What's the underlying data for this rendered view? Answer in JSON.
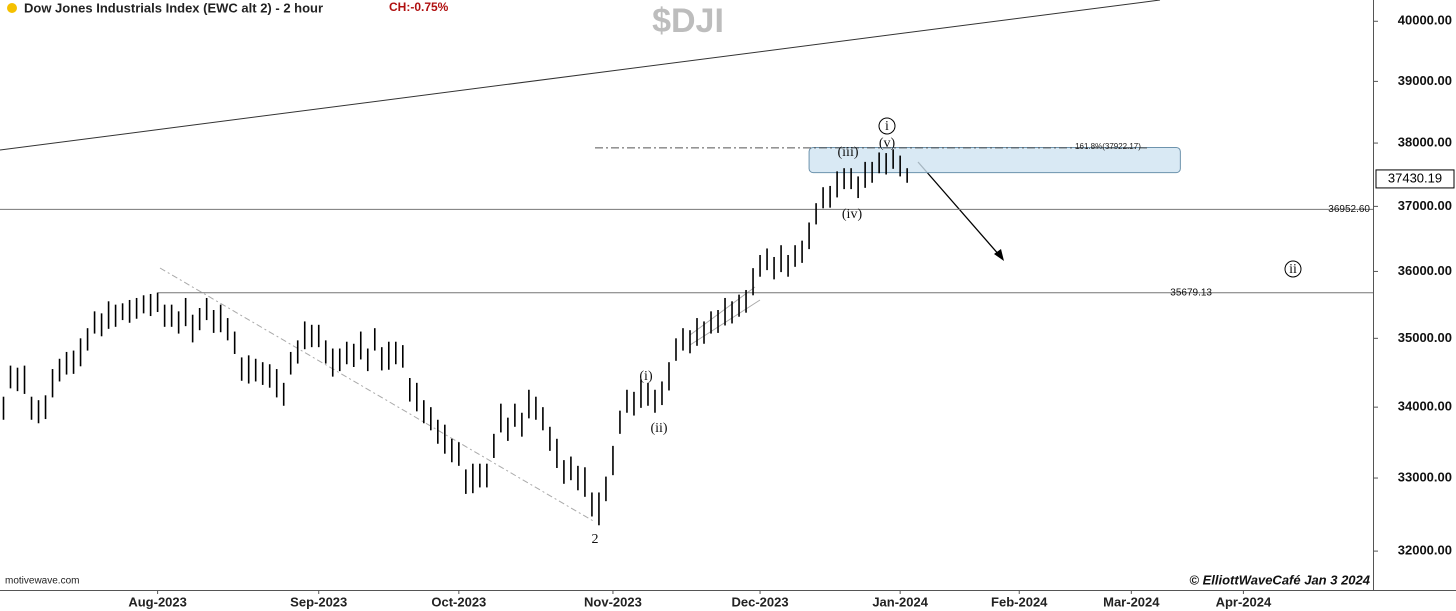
{
  "chart_data": {
    "type": "range",
    "title": "Dow Jones Industrials Index (EWC alt 2) - 2 hour",
    "change": "CH:-0.75%",
    "symbol": "$DJI",
    "source": "motivewave.com",
    "credit": "© ElliottWaveCafé Jan 3 2024",
    "color": "#000000",
    "log": true,
    "ylim": [
      31480,
      40360
    ],
    "yticks": [
      {
        "value": 32000,
        "label": "32000.00"
      },
      {
        "value": 33000,
        "label": "33000.00"
      },
      {
        "value": 34000,
        "label": "34000.00"
      },
      {
        "value": 35000,
        "label": "35000.00"
      },
      {
        "value": 36000,
        "label": "36000.00"
      },
      {
        "value": 37000,
        "label": "37000.00"
      },
      {
        "value": 38000,
        "label": "38000.00"
      },
      {
        "value": 39000,
        "label": "39000.00"
      },
      {
        "value": 40000,
        "label": "40000.00"
      }
    ],
    "last_price": 37430.19,
    "levels": [
      {
        "value": 36952.6,
        "label": "36952.60"
      },
      35679.13
    ],
    "fib": {
      "value": 37922.17,
      "label": "161.8%(37922.17)"
    },
    "target_zone": [
      37530,
      37930
    ],
    "annotations": [
      "2",
      "(i)",
      "(ii)",
      "(iii)",
      "(iv)",
      "(v)",
      "i",
      "ii"
    ],
    "categories": [
      null,
      null,
      null,
      null,
      null,
      null,
      null,
      null,
      null,
      null,
      null,
      null,
      null,
      null,
      null,
      null,
      null,
      null,
      null,
      null,
      null,
      null,
      "Aug-2023",
      null,
      null,
      null,
      null,
      null,
      null,
      null,
      null,
      null,
      null,
      null,
      null,
      null,
      null,
      null,
      null,
      null,
      null,
      null,
      null,
      null,
      null,
      "Sep-2023",
      null,
      null,
      null,
      null,
      null,
      null,
      null,
      null,
      null,
      null,
      null,
      null,
      null,
      null,
      null,
      null,
      null,
      null,
      null,
      "Oct-2023",
      null,
      null,
      null,
      null,
      null,
      null,
      null,
      null,
      null,
      null,
      null,
      null,
      null,
      null,
      null,
      null,
      null,
      null,
      null,
      null,
      null,
      "Nov-2023",
      null,
      null,
      null,
      null,
      null,
      null,
      null,
      null,
      null,
      null,
      null,
      null,
      null,
      null,
      null,
      null,
      null,
      null,
      null,
      null,
      "Dec-2023",
      null,
      null,
      null,
      null,
      null,
      null,
      null,
      null,
      null,
      null,
      null,
      null,
      null,
      null,
      null,
      null,
      null,
      null,
      null,
      "Jan-2024",
      null,
      null,
      null,
      null,
      null,
      null,
      null,
      null,
      null,
      null,
      null,
      null,
      null,
      null,
      null,
      null,
      "Feb-2024",
      null,
      null,
      null,
      null,
      null,
      null,
      null,
      null,
      null,
      null,
      null,
      null,
      null,
      null,
      null,
      "Mar-2024",
      null,
      null,
      null,
      null,
      null,
      null,
      null,
      null,
      null,
      null,
      null,
      null,
      null,
      null,
      null,
      "Apr-2024",
      null,
      null,
      null,
      null,
      null,
      null,
      null,
      null,
      null,
      null,
      null,
      null,
      null,
      null,
      null,
      null,
      null,
      null
    ],
    "high": [
      34150,
      34600,
      34570,
      34600,
      34150,
      34100,
      34170,
      34550,
      34700,
      34800,
      34820,
      35000,
      35150,
      35400,
      35370,
      35550,
      35500,
      35520,
      35570,
      35600,
      35640,
      35660,
      35680,
      35500,
      35500,
      35400,
      35600,
      35350,
      35450,
      35600,
      35420,
      35500,
      35300,
      35100,
      34720,
      34750,
      34700,
      34650,
      34620,
      34550,
      34350,
      34800,
      34970,
      35250,
      35200,
      35200,
      34970,
      34850,
      34850,
      34950,
      34920,
      35100,
      34850,
      35150,
      34870,
      34950,
      34950,
      34900,
      34420,
      34350,
      34100,
      34000,
      33820,
      33750,
      33550,
      33500,
      33120,
      33200,
      33200,
      33200,
      33620,
      34050,
      33850,
      34050,
      33920,
      34250,
      34150,
      34000,
      33720,
      33550,
      33250,
      33300,
      33170,
      33150,
      32800,
      32800,
      33020,
      33450,
      33950,
      34250,
      34220,
      34400,
      34350,
      34250,
      34370,
      34650,
      35000,
      35150,
      35120,
      35300,
      35250,
      35400,
      35420,
      35600,
      35550,
      35650,
      35720,
      36050,
      36250,
      36350,
      36220,
      36400,
      36250,
      36400,
      36470,
      36750,
      37050,
      37300,
      37320,
      37550,
      37600,
      37600,
      37470,
      37700,
      37700,
      37850,
      37840,
      37900,
      37800,
      37600,
      null,
      null,
      null,
      null,
      null,
      null,
      null,
      null,
      null,
      null,
      null,
      null,
      null,
      null,
      null,
      null,
      null,
      null,
      null,
      null,
      null,
      null,
      null,
      null,
      null,
      null,
      null,
      null,
      null,
      null,
      null,
      null,
      null,
      null,
      null,
      null,
      null,
      null,
      null,
      null,
      null,
      null,
      null,
      null,
      null,
      null,
      null,
      null,
      null,
      null,
      null,
      null,
      null,
      null,
      null,
      null,
      null,
      null,
      null,
      null,
      null,
      null,
      null,
      null,
      null,
      null
    ],
    "low": [
      33820,
      34270,
      34230,
      34190,
      33820,
      33770,
      33830,
      34140,
      34370,
      34470,
      34480,
      34590,
      34820,
      35070,
      35030,
      35140,
      35170,
      35270,
      35230,
      35290,
      35370,
      35330,
      35390,
      35170,
      35170,
      35070,
      35180,
      34940,
      35120,
      35270,
      35080,
      35090,
      34970,
      34770,
      34380,
      34340,
      34370,
      34320,
      34280,
      34140,
      34020,
      34470,
      34630,
      34840,
      34870,
      34870,
      34630,
      34440,
      34520,
      34620,
      34580,
      34690,
      34520,
      34820,
      34530,
      34540,
      34620,
      34570,
      34080,
      33940,
      33770,
      33670,
      33480,
      33340,
      33220,
      33170,
      32780,
      32790,
      32870,
      32870,
      33280,
      33640,
      33520,
      33720,
      33580,
      33840,
      33820,
      33670,
      33380,
      33140,
      32920,
      32970,
      32830,
      32740,
      32470,
      32350,
      32680,
      33040,
      33620,
      33920,
      33880,
      33990,
      34020,
      33920,
      34030,
      34240,
      34670,
      34820,
      34780,
      34890,
      34920,
      35070,
      35080,
      35190,
      35220,
      35320,
      35380,
      35640,
      35920,
      36020,
      35880,
      35990,
      35920,
      36070,
      36130,
      36340,
      36720,
      36970,
      36980,
      37140,
      37270,
      37270,
      37130,
      37290,
      37370,
      37520,
      37500,
      37590,
      37470,
      37370,
      null,
      null,
      null,
      null,
      null,
      null,
      null,
      null,
      null,
      null,
      null,
      null,
      null,
      null,
      null,
      null,
      null,
      null,
      null,
      null,
      null,
      null,
      null,
      null,
      null,
      null,
      null,
      null,
      null,
      null,
      null,
      null,
      null,
      null,
      null,
      null,
      null,
      null,
      null,
      null,
      null,
      null,
      null,
      null,
      null,
      null,
      null,
      null,
      null,
      null,
      null,
      null,
      null,
      null,
      null,
      null,
      null,
      null,
      null,
      null,
      null,
      null,
      null,
      null,
      null,
      null
    ]
  }
}
